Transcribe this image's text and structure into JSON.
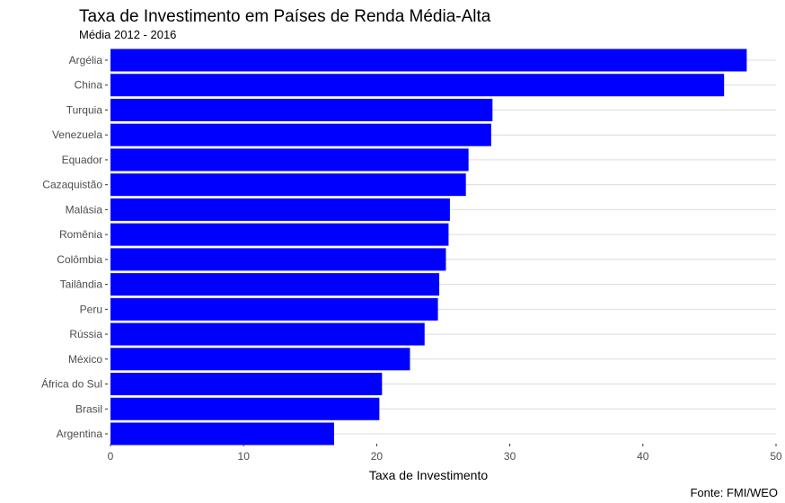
{
  "chart_data": {
    "type": "bar",
    "orientation": "horizontal",
    "title": "Taxa de Investimento em Países de Renda Média-Alta",
    "subtitle": "Média 2012 - 2016",
    "xlabel": "Taxa de Investimento",
    "ylabel": "",
    "caption": "Fonte: FMI/WEO",
    "xlim": [
      0,
      50
    ],
    "xticks": [
      0,
      10,
      20,
      30,
      40,
      50
    ],
    "grid": "horizontal",
    "bar_color": "#0000FF",
    "categories": [
      "Argélia",
      "China",
      "Turquia",
      "Venezuela",
      "Equador",
      "Cazaquistão",
      "Malásia",
      "Romênia",
      "Colômbia",
      "Tailândia",
      "Peru",
      "Rússia",
      "México",
      "África do Sul",
      "Brasil",
      "Argentina"
    ],
    "values": [
      47.8,
      46.1,
      28.7,
      28.6,
      26.9,
      26.7,
      25.5,
      25.4,
      25.2,
      24.7,
      24.6,
      23.6,
      22.5,
      20.4,
      20.2,
      16.8
    ]
  }
}
